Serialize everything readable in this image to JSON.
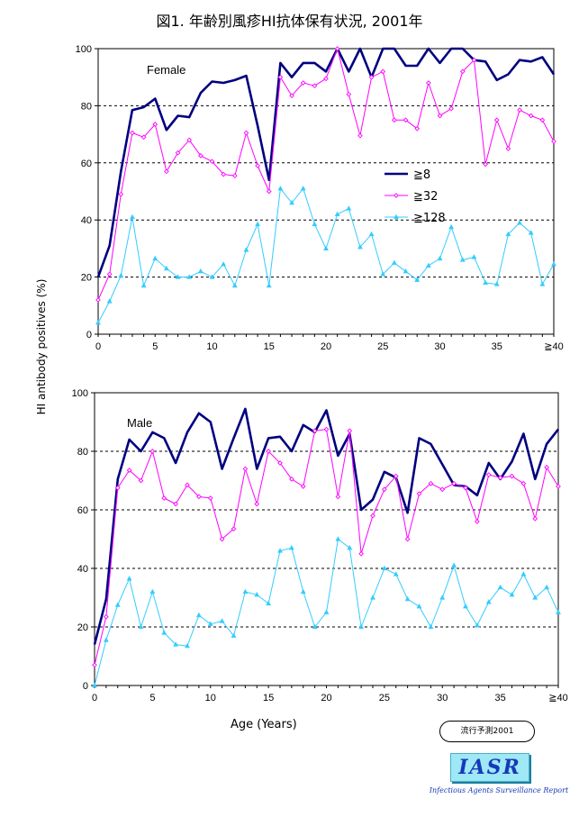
{
  "figure": {
    "title": "図1. 年齢別風疹HI抗体保有状況, 2001年",
    "ylabel": "HI antibody positives (%)",
    "xlabel": "Age (Years)",
    "badge": "流行予測2001",
    "logo": "IASR",
    "logo_sub": "Infectious Agents Surveillance Report"
  },
  "colors": {
    "ge8": "#000080",
    "ge32": "#ff00ff",
    "ge128": "#33ccff"
  },
  "chart_data": [
    {
      "type": "line",
      "panel_label": "Female",
      "xlim": [
        0,
        40
      ],
      "ylim": [
        0,
        100
      ],
      "xticks": [
        0,
        5,
        10,
        15,
        20,
        25,
        30,
        35,
        40
      ],
      "xtick_labels": [
        "0",
        "5",
        "10",
        "15",
        "20",
        "25",
        "30",
        "35",
        "≧40"
      ],
      "yticks": [
        0,
        20,
        40,
        60,
        80,
        100
      ],
      "grid": "horizontal dashed",
      "legend_position": "center-right",
      "x": [
        0,
        1,
        2,
        3,
        4,
        5,
        6,
        7,
        8,
        9,
        10,
        11,
        12,
        13,
        14,
        15,
        16,
        17,
        18,
        19,
        20,
        21,
        22,
        23,
        24,
        25,
        26,
        27,
        28,
        29,
        30,
        31,
        32,
        33,
        34,
        35,
        36,
        37,
        38,
        39,
        40
      ],
      "series": [
        {
          "name": "≧8",
          "key": "ge8",
          "values": [
            20,
            31,
            57,
            78.5,
            79.5,
            82.5,
            71.5,
            76.5,
            76,
            84.5,
            88.5,
            88,
            89,
            90.5,
            73,
            54,
            95,
            90,
            95,
            95,
            92,
            100,
            92,
            100,
            90,
            100,
            100,
            94,
            94,
            100,
            95,
            100,
            100,
            96,
            95.5,
            89,
            91,
            96,
            95.5,
            97,
            91
          ]
        },
        {
          "name": "≧32",
          "key": "ge32",
          "values": [
            12,
            21,
            49,
            70.5,
            69,
            73.5,
            57,
            63.5,
            68,
            62.5,
            60.5,
            56,
            55.5,
            70.5,
            59,
            50,
            90,
            83.5,
            88,
            87,
            89.5,
            100,
            84,
            69.5,
            90,
            92,
            75,
            75,
            72,
            88,
            76.5,
            79,
            92,
            96,
            59.5,
            75,
            65,
            78.5,
            76.5,
            75,
            67.5
          ]
        },
        {
          "name": "≧128",
          "key": "ge128",
          "values": [
            4,
            11.5,
            20.5,
            41,
            17,
            26.5,
            23,
            20,
            20,
            22,
            20,
            24.5,
            17,
            29.5,
            38.5,
            17,
            51,
            46,
            51,
            38.5,
            30,
            42,
            44,
            30.5,
            35,
            21,
            25,
            22,
            19,
            24,
            26.5,
            37.5,
            26,
            27,
            18,
            17.5,
            35,
            39,
            35.5,
            17.5,
            24.5
          ]
        }
      ]
    },
    {
      "type": "line",
      "panel_label": "Male",
      "xlim": [
        0,
        40
      ],
      "ylim": [
        0,
        100
      ],
      "xticks": [
        0,
        5,
        10,
        15,
        20,
        25,
        30,
        35,
        40
      ],
      "xtick_labels": [
        "0",
        "5",
        "10",
        "15",
        "20",
        "25",
        "30",
        "35",
        "≧40"
      ],
      "yticks": [
        0,
        20,
        40,
        60,
        80,
        100
      ],
      "grid": "horizontal dashed",
      "x": [
        0,
        1,
        2,
        3,
        4,
        5,
        6,
        7,
        8,
        9,
        10,
        11,
        12,
        13,
        14,
        15,
        16,
        17,
        18,
        19,
        20,
        21,
        22,
        23,
        24,
        25,
        26,
        27,
        28,
        29,
        30,
        31,
        32,
        33,
        34,
        35,
        36,
        37,
        38,
        39,
        40
      ],
      "series": [
        {
          "name": "≧8",
          "key": "ge8",
          "values": [
            14,
            29.5,
            70.5,
            84,
            80,
            86.5,
            84.5,
            76,
            86.5,
            93,
            90,
            74,
            84.5,
            94.5,
            74,
            84.5,
            85,
            80,
            89,
            86.5,
            94,
            78.5,
            86,
            60,
            63.5,
            73,
            71,
            59,
            84.5,
            82.5,
            75.5,
            68.5,
            68,
            65,
            76,
            70.5,
            76.5,
            86,
            70.5,
            82.5,
            87.5
          ]
        },
        {
          "name": "≧32",
          "key": "ge32",
          "values": [
            7,
            23.5,
            67.5,
            73.5,
            70,
            80,
            64,
            62,
            68.5,
            64.5,
            64,
            50,
            53.5,
            74,
            62,
            80,
            76,
            70.5,
            68,
            87,
            87.5,
            64.5,
            87,
            45,
            58,
            67,
            71.5,
            50,
            65.5,
            69,
            67,
            69,
            67.5,
            56,
            72,
            71,
            71.5,
            69,
            57,
            74.5,
            68
          ]
        },
        {
          "name": "≧128",
          "key": "ge128",
          "values": [
            0,
            15.5,
            27.5,
            36.5,
            20,
            32,
            18,
            14,
            13.5,
            24,
            21,
            22,
            17,
            32,
            31,
            28,
            46,
            47,
            32,
            20,
            25,
            50,
            47,
            20,
            30,
            40,
            38,
            29.5,
            27,
            20,
            30,
            41,
            27,
            20.5,
            28.5,
            33.5,
            31,
            38,
            30,
            33.5,
            25
          ]
        }
      ]
    }
  ]
}
